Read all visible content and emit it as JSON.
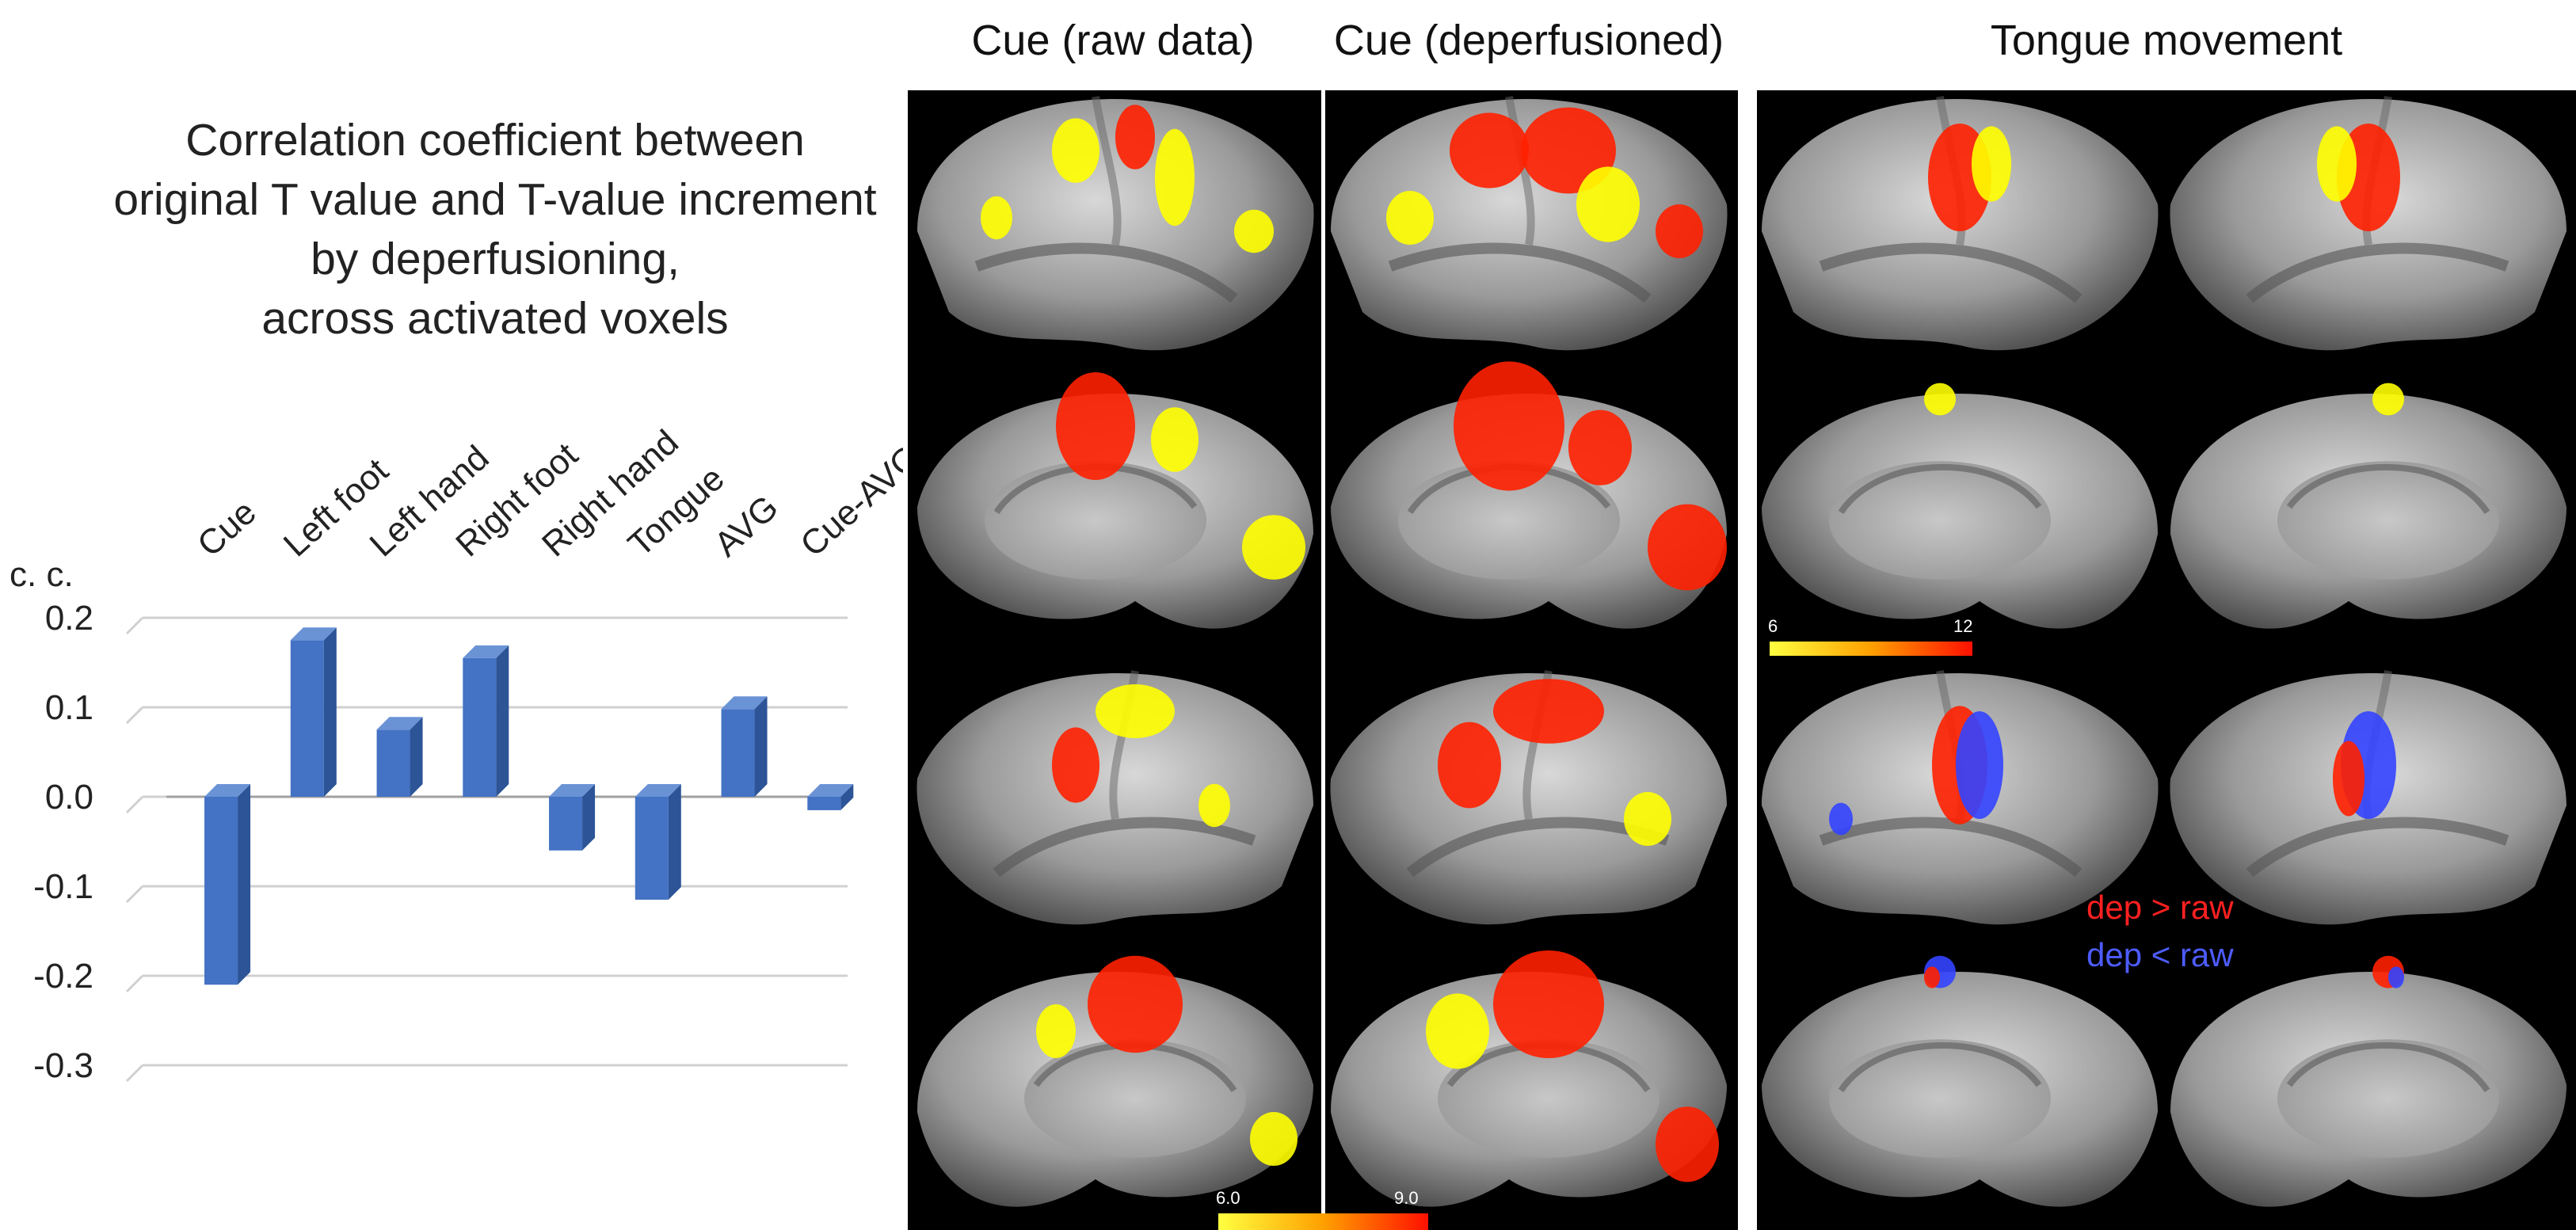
{
  "chart_data": {
    "type": "bar",
    "title": [
      "Correlation coefficient between",
      "original T value and T-value increment",
      "by deperfusioning,",
      "across activated voxels"
    ],
    "ylabel": "c. c.",
    "categories": [
      "Cue",
      "Left foot",
      "Left hand",
      "Right foot",
      "Right hand",
      "Tongue",
      "AVG",
      "Cue-AVG"
    ],
    "values": [
      -0.21,
      0.175,
      0.075,
      0.155,
      -0.06,
      -0.115,
      0.098,
      -0.015
    ],
    "ylim": [
      -0.3,
      0.2
    ],
    "yticks": [
      "0.2",
      "0.1",
      "0.0",
      "-0.1",
      "-0.2",
      "-0.3"
    ],
    "ytick_values": [
      0.2,
      0.1,
      0.0,
      -0.1,
      -0.2,
      -0.3
    ],
    "grid": true,
    "bar_color": "#4472C4"
  },
  "headers": {
    "cue_raw": "Cue (raw data)",
    "cue_deperf": "Cue (deperfusioned)",
    "tongue": "Tongue movement"
  },
  "colorbars": {
    "cue_min": "6.0",
    "cue_max": "9.0",
    "tongue_min": "6",
    "tongue_max": "12"
  },
  "legend": {
    "dep_gt_raw": "dep > raw",
    "dep_lt_raw": "dep < raw",
    "dep_gt_color": "#ff2020",
    "dep_lt_color": "#4d5cff"
  },
  "colors": {
    "panel_bg": "#000000",
    "activation_low": "#ffff00",
    "activation_high": "#ff2000"
  }
}
